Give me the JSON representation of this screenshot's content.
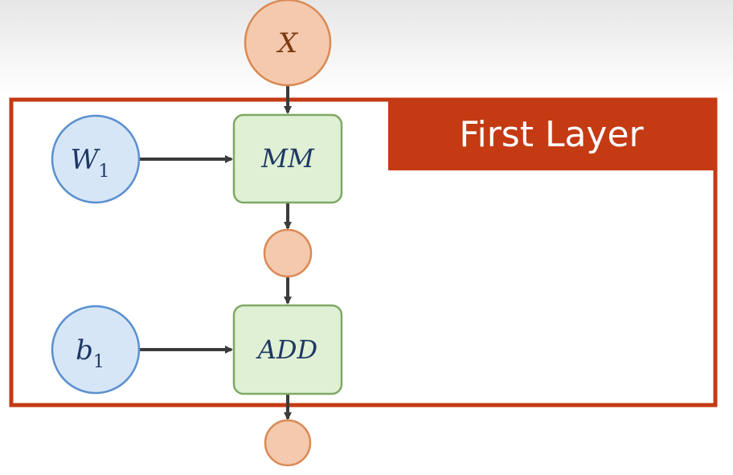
{
  "diagram": {
    "group_label": "First Layer",
    "nodes": {
      "x_input": {
        "label": "X"
      },
      "w1_param": {
        "label": "W",
        "subscript": "1"
      },
      "b1_param": {
        "label": "b",
        "subscript": "1"
      },
      "mm_op": {
        "label": "MM"
      },
      "add_op": {
        "label": "ADD"
      }
    },
    "colors": {
      "frame": "#c43a13",
      "input_fill": "#f5c9ad",
      "input_stroke": "#d98a56",
      "param_fill": "#d6e6f7",
      "param_stroke": "#5b8fcf",
      "op_fill": "#dff0d4",
      "op_stroke": "#7fa865",
      "arrow": "#3b3b3b",
      "label_text": "#1f3864",
      "input_text": "#7a3b12"
    }
  }
}
